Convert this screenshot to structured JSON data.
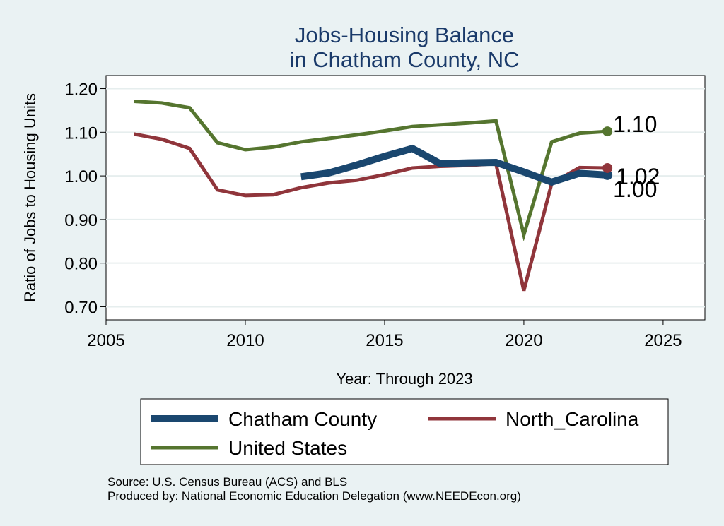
{
  "chart_data": {
    "type": "line",
    "title": [
      "Jobs-Housing Balance",
      "in Chatham County, NC"
    ],
    "xlabel": "Year: Through 2023",
    "ylabel": "Ratio of Jobs to Housing Units",
    "xlim": [
      2005,
      2026.5
    ],
    "ylim": [
      0.67,
      1.23
    ],
    "xticks": [
      2005,
      2010,
      2015,
      2020,
      2025
    ],
    "yticks": [
      0.7,
      0.8,
      0.9,
      1.0,
      1.1,
      1.2
    ],
    "ytick_labels": [
      "0.70",
      "0.80",
      "0.90",
      "1.00",
      "1.10",
      "1.20"
    ],
    "grid": true,
    "legend_position": "bottom",
    "series": [
      {
        "name": "Chatham County",
        "color": "#1a476f",
        "width": "thick",
        "x": [
          2012,
          2013,
          2014,
          2015,
          2016,
          2017,
          2018,
          2019,
          2020,
          2021,
          2022,
          2023
        ],
        "values": [
          0.998,
          1.007,
          1.025,
          1.045,
          1.063,
          1.028,
          1.03,
          1.031,
          1.009,
          0.986,
          1.006,
          1.002
        ],
        "end_label": "1.00"
      },
      {
        "name": "North_Carolina",
        "color": "#90353b",
        "width": "normal",
        "x": [
          2006,
          2007,
          2008,
          2009,
          2010,
          2011,
          2012,
          2013,
          2014,
          2015,
          2016,
          2017,
          2018,
          2019,
          2020,
          2021,
          2022,
          2023
        ],
        "values": [
          1.096,
          1.084,
          1.063,
          0.968,
          0.955,
          0.957,
          0.973,
          0.984,
          0.99,
          1.003,
          1.018,
          1.022,
          1.024,
          1.028,
          0.737,
          0.983,
          1.019,
          1.018
        ],
        "end_label": "1.02"
      },
      {
        "name": "United States",
        "color": "#55752f",
        "width": "normal",
        "x": [
          2006,
          2007,
          2008,
          2009,
          2010,
          2011,
          2012,
          2013,
          2014,
          2015,
          2016,
          2017,
          2018,
          2019,
          2020,
          2021,
          2022,
          2023
        ],
        "values": [
          1.171,
          1.167,
          1.156,
          1.076,
          1.06,
          1.066,
          1.078,
          1.086,
          1.094,
          1.103,
          1.113,
          1.117,
          1.121,
          1.126,
          0.865,
          1.078,
          1.098,
          1.102
        ],
        "end_label": "1.10"
      }
    ],
    "source_lines": [
      "Source: U.S. Census Bureau (ACS) and BLS",
      "Produced by: National Economic Education Delegation (www.NEEDEcon.org)"
    ]
  }
}
